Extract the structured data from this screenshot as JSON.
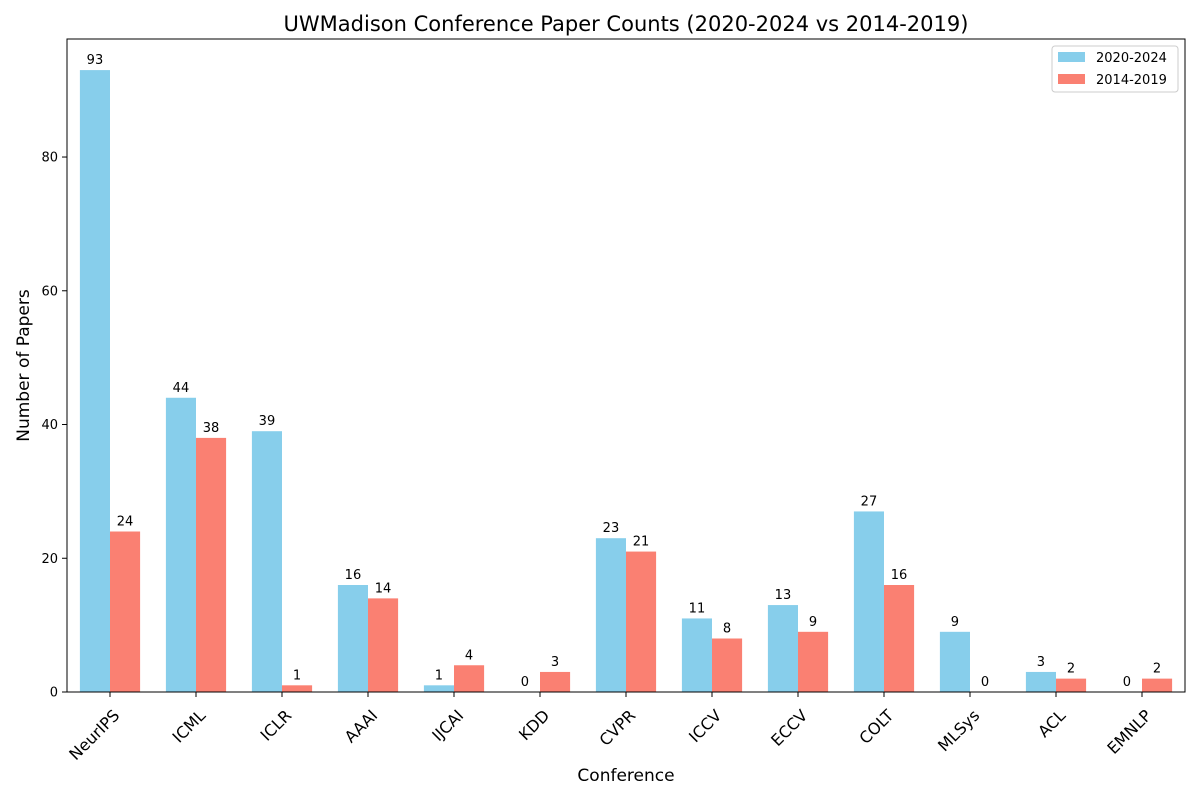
{
  "chart_data": {
    "type": "bar",
    "title": "UWMadison Conference Paper Counts (2020-2024 vs 2014-2019)",
    "xlabel": "Conference",
    "ylabel": "Number of Papers",
    "categories": [
      "NeurIPS",
      "ICML",
      "ICLR",
      "AAAI",
      "IJCAI",
      "KDD",
      "CVPR",
      "ICCV",
      "ECCV",
      "COLT",
      "MLSys",
      "ACL",
      "EMNLP"
    ],
    "series": [
      {
        "name": "2020-2024",
        "color": "#87ceeb",
        "values": [
          93,
          44,
          39,
          16,
          1,
          0,
          23,
          11,
          13,
          27,
          9,
          3,
          0
        ]
      },
      {
        "name": "2014-2019",
        "color": "#fa8072",
        "values": [
          24,
          38,
          1,
          14,
          4,
          3,
          21,
          8,
          9,
          16,
          0,
          2,
          2
        ]
      }
    ],
    "ylim": [
      0,
      97.65
    ],
    "yticks": [
      0,
      20,
      40,
      60,
      80
    ],
    "grid": false,
    "legend_position": "top-right"
  }
}
